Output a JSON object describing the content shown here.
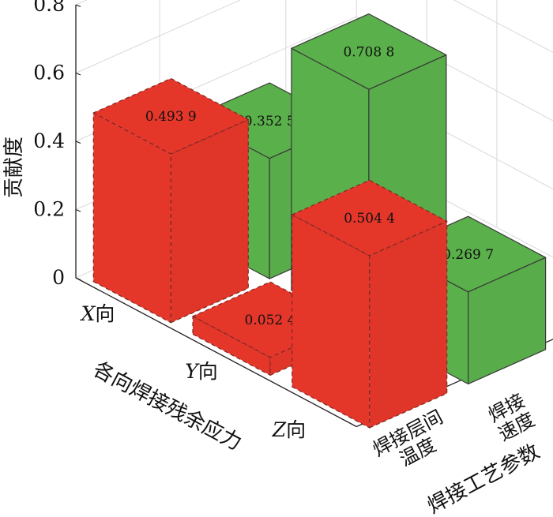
{
  "chart_data": {
    "type": "bar",
    "ylabel": "贡献度",
    "ylim": [
      0,
      0.8
    ],
    "yticks": [
      "0",
      "0.2",
      "0.4",
      "0.6",
      "0.8"
    ],
    "x_axis_title": "各向焊接残余应力",
    "y_axis_title": "焊接工艺参数",
    "stress_categories": [
      {
        "italic": "X",
        "suffix": "向"
      },
      {
        "italic": "Y",
        "suffix": "向"
      },
      {
        "italic": "Z",
        "suffix": "向"
      }
    ],
    "parameter_categories": [
      {
        "lines": [
          "焊接层间",
          "温度"
        ]
      },
      {
        "lines": [
          "焊接",
          "速度"
        ]
      }
    ],
    "series": [
      {
        "group": "stress",
        "color": "#e5362a",
        "values": [
          0.4939,
          0.0524,
          0.5044
        ],
        "labels": [
          "0.493 9",
          "0.052 4",
          "0.504 4"
        ]
      },
      {
        "group": "parameter",
        "color": "#5ab04a",
        "values": [
          0.3525,
          0.7088,
          0.2697
        ],
        "labels": [
          "0.352 5",
          "0.708 8",
          "0.269 7"
        ]
      }
    ],
    "grid": true
  }
}
